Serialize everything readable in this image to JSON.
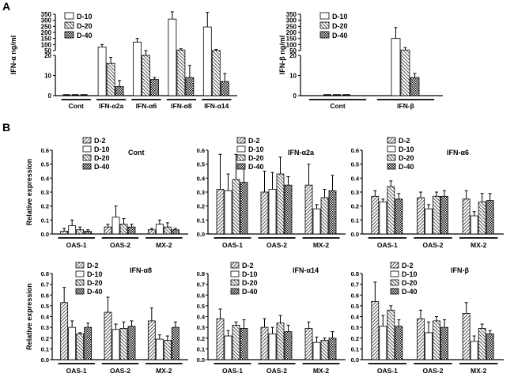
{
  "panel_labels": {
    "a": "A",
    "b": "B"
  },
  "patterns": {
    "D-2": "diag-right",
    "D-10": "white",
    "D-20": "diag-left",
    "D-40": "checker"
  },
  "chart_data": [
    {
      "id": "ifna-prod",
      "type": "bar",
      "ylabel": "IFN-α ng/ml",
      "legend": [
        "D-10",
        "D-20",
        "D-40"
      ],
      "broken_axis": {
        "lower_ticks": [
          0,
          10,
          20
        ],
        "upper_ticks": [
          50,
          100,
          150,
          200,
          250,
          300,
          350
        ]
      },
      "categories": [
        "Cont",
        "IFN-α2a",
        "IFN-α6",
        "IFN-α8",
        "IFN-α14"
      ],
      "series": [
        {
          "name": "D-10",
          "values": [
            0,
            80,
            120,
            310,
            245
          ],
          "errors": [
            0,
            20,
            30,
            60,
            120
          ]
        },
        {
          "name": "D-20",
          "values": [
            0,
            16,
            45,
            55,
            50
          ],
          "errors": [
            0,
            3,
            5,
            10,
            10
          ]
        },
        {
          "name": "D-40",
          "values": [
            0,
            4.5,
            8,
            9,
            7
          ],
          "errors": [
            0,
            3,
            1,
            6,
            4
          ]
        }
      ]
    },
    {
      "id": "ifnb-prod",
      "type": "bar",
      "ylabel": "IFN-β ng/ml",
      "legend": [
        "D-10",
        "D-20",
        "D-40"
      ],
      "broken_axis": {
        "lower_ticks": [
          0,
          10,
          20
        ],
        "upper_ticks": [
          50,
          100,
          150,
          200,
          250,
          300,
          350
        ]
      },
      "categories": [
        "Cont",
        "IFN-β"
      ],
      "series": [
        {
          "name": "D-10",
          "values": [
            0,
            150
          ],
          "errors": [
            0,
            90
          ]
        },
        {
          "name": "D-20",
          "values": [
            0,
            55
          ],
          "errors": [
            0,
            20
          ]
        },
        {
          "name": "D-40",
          "values": [
            0,
            9
          ],
          "errors": [
            0,
            2
          ]
        }
      ]
    },
    {
      "id": "expr-cont",
      "type": "bar",
      "title": "Cont",
      "ylabel": "Relative expression",
      "legend": [
        "D-2",
        "D-10",
        "D-20",
        "D-40"
      ],
      "ylim": [
        0,
        0.6
      ],
      "yticks": [
        "0.0",
        "0.1",
        "0.2",
        "0.3",
        "0.4",
        "0.5",
        "0.6"
      ],
      "categories": [
        "OAS-1",
        "OAS-2",
        "MX-2"
      ],
      "series": [
        {
          "name": "D-2",
          "values": [
            0.02,
            0.05,
            0.03
          ],
          "errors": [
            0.02,
            0.02,
            0.01
          ]
        },
        {
          "name": "D-10",
          "values": [
            0.06,
            0.12,
            0.07
          ],
          "errors": [
            0.04,
            0.08,
            0.03
          ]
        },
        {
          "name": "D-20",
          "values": [
            0.03,
            0.07,
            0.05
          ],
          "errors": [
            0.02,
            0.04,
            0.03
          ]
        },
        {
          "name": "D-40",
          "values": [
            0.02,
            0.05,
            0.03
          ],
          "errors": [
            0.01,
            0.02,
            0.01
          ]
        }
      ]
    },
    {
      "id": "expr-a2a",
      "type": "bar",
      "title": "IFN-α2a",
      "ylabel": "",
      "legend": [
        "D-2",
        "D-10",
        "D-20",
        "D-40"
      ],
      "ylim": [
        0,
        0.6
      ],
      "yticks": [
        "0.0",
        "0.1",
        "0.2",
        "0.3",
        "0.4",
        "0.5",
        "0.6"
      ],
      "categories": [
        "OAS-1",
        "OAS-2",
        "MX-2"
      ],
      "series": [
        {
          "name": "D-2",
          "values": [
            0.32,
            0.3,
            0.35
          ],
          "errors": [
            0.25,
            0.15,
            0.15
          ]
        },
        {
          "name": "D-10",
          "values": [
            0.31,
            0.32,
            0.18
          ],
          "errors": [
            0.12,
            0.12,
            0.03
          ]
        },
        {
          "name": "D-20",
          "values": [
            0.39,
            0.43,
            0.26
          ],
          "errors": [
            0.18,
            0.12,
            0.06
          ]
        },
        {
          "name": "D-40",
          "values": [
            0.37,
            0.35,
            0.31
          ],
          "errors": [
            0.12,
            0.06,
            0.11
          ]
        }
      ]
    },
    {
      "id": "expr-a6",
      "type": "bar",
      "title": "IFN-α6",
      "ylabel": "",
      "legend": [
        "D-2",
        "D-10",
        "D-20",
        "D-40"
      ],
      "ylim": [
        0,
        0.6
      ],
      "yticks": [
        "0.0",
        "0.1",
        "0.2",
        "0.3",
        "0.4",
        "0.5",
        "0.6"
      ],
      "categories": [
        "OAS-1",
        "OAS-2",
        "MX-2"
      ],
      "series": [
        {
          "name": "D-2",
          "values": [
            0.27,
            0.26,
            0.25
          ],
          "errors": [
            0.04,
            0.04,
            0.06
          ]
        },
        {
          "name": "D-10",
          "values": [
            0.23,
            0.18,
            0.13
          ],
          "errors": [
            0.02,
            0.03,
            0.03
          ]
        },
        {
          "name": "D-20",
          "values": [
            0.34,
            0.27,
            0.23
          ],
          "errors": [
            0.04,
            0.03,
            0.06
          ]
        },
        {
          "name": "D-40",
          "values": [
            0.25,
            0.27,
            0.24
          ],
          "errors": [
            0.04,
            0.04,
            0.05
          ]
        }
      ]
    },
    {
      "id": "expr-a8",
      "type": "bar",
      "title": "IFN-α8",
      "ylabel": "Relative expression",
      "legend": [
        "D-2",
        "D-10",
        "D-20",
        "D-40"
      ],
      "ylim": [
        0,
        0.8
      ],
      "yticks": [
        "0.0",
        "0.1",
        "0.2",
        "0.3",
        "0.4",
        "0.5",
        "0.6",
        "0.7",
        "0.8"
      ],
      "categories": [
        "OAS-1",
        "OAS-2",
        "MX-2"
      ],
      "series": [
        {
          "name": "D-2",
          "values": [
            0.53,
            0.44,
            0.36
          ],
          "errors": [
            0.14,
            0.14,
            0.12
          ]
        },
        {
          "name": "D-10",
          "values": [
            0.3,
            0.28,
            0.19
          ],
          "errors": [
            0.06,
            0.05,
            0.04
          ]
        },
        {
          "name": "D-20",
          "values": [
            0.24,
            0.29,
            0.18
          ],
          "errors": [
            0.01,
            0.06,
            0.04
          ]
        },
        {
          "name": "D-40",
          "values": [
            0.3,
            0.31,
            0.3
          ],
          "errors": [
            0.04,
            0.05,
            0.05
          ]
        }
      ]
    },
    {
      "id": "expr-a14",
      "type": "bar",
      "title": "IFN-α14",
      "ylabel": "",
      "legend": [
        "D-2",
        "D-10",
        "D-20",
        "D-40"
      ],
      "ylim": [
        0,
        0.8
      ],
      "yticks": [
        "0.0",
        "0.1",
        "0.2",
        "0.3",
        "0.4",
        "0.5",
        "0.6",
        "0.7",
        "0.8"
      ],
      "categories": [
        "OAS-1",
        "OAS-2",
        "MX-2"
      ],
      "series": [
        {
          "name": "D-2",
          "values": [
            0.38,
            0.3,
            0.29
          ],
          "errors": [
            0.09,
            0.08,
            0.06
          ]
        },
        {
          "name": "D-10",
          "values": [
            0.22,
            0.24,
            0.16
          ],
          "errors": [
            0.05,
            0.06,
            0.05
          ]
        },
        {
          "name": "D-20",
          "values": [
            0.32,
            0.34,
            0.18
          ],
          "errors": [
            0.03,
            0.07,
            0.02
          ]
        },
        {
          "name": "D-40",
          "values": [
            0.29,
            0.26,
            0.2
          ],
          "errors": [
            0.08,
            0.06,
            0.06
          ]
        }
      ]
    },
    {
      "id": "expr-b",
      "type": "bar",
      "title": "IFN-β",
      "ylabel": "",
      "legend": [
        "D-2",
        "D-10",
        "D-20",
        "D-40"
      ],
      "ylim": [
        0,
        0.8
      ],
      "yticks": [
        "0.0",
        "0.1",
        "0.2",
        "0.3",
        "0.4",
        "0.5",
        "0.6",
        "0.7",
        "0.8"
      ],
      "categories": [
        "OAS-1",
        "OAS-2",
        "MX-2"
      ],
      "series": [
        {
          "name": "D-2",
          "values": [
            0.54,
            0.38,
            0.43
          ],
          "errors": [
            0.18,
            0.08,
            0.1
          ]
        },
        {
          "name": "D-10",
          "values": [
            0.31,
            0.25,
            0.17
          ],
          "errors": [
            0.1,
            0.1,
            0.05
          ]
        },
        {
          "name": "D-20",
          "values": [
            0.46,
            0.36,
            0.29
          ],
          "errors": [
            0.04,
            0.04,
            0.04
          ]
        },
        {
          "name": "D-40",
          "values": [
            0.31,
            0.3,
            0.24
          ],
          "errors": [
            0.06,
            0.07,
            0.03
          ]
        }
      ]
    }
  ]
}
